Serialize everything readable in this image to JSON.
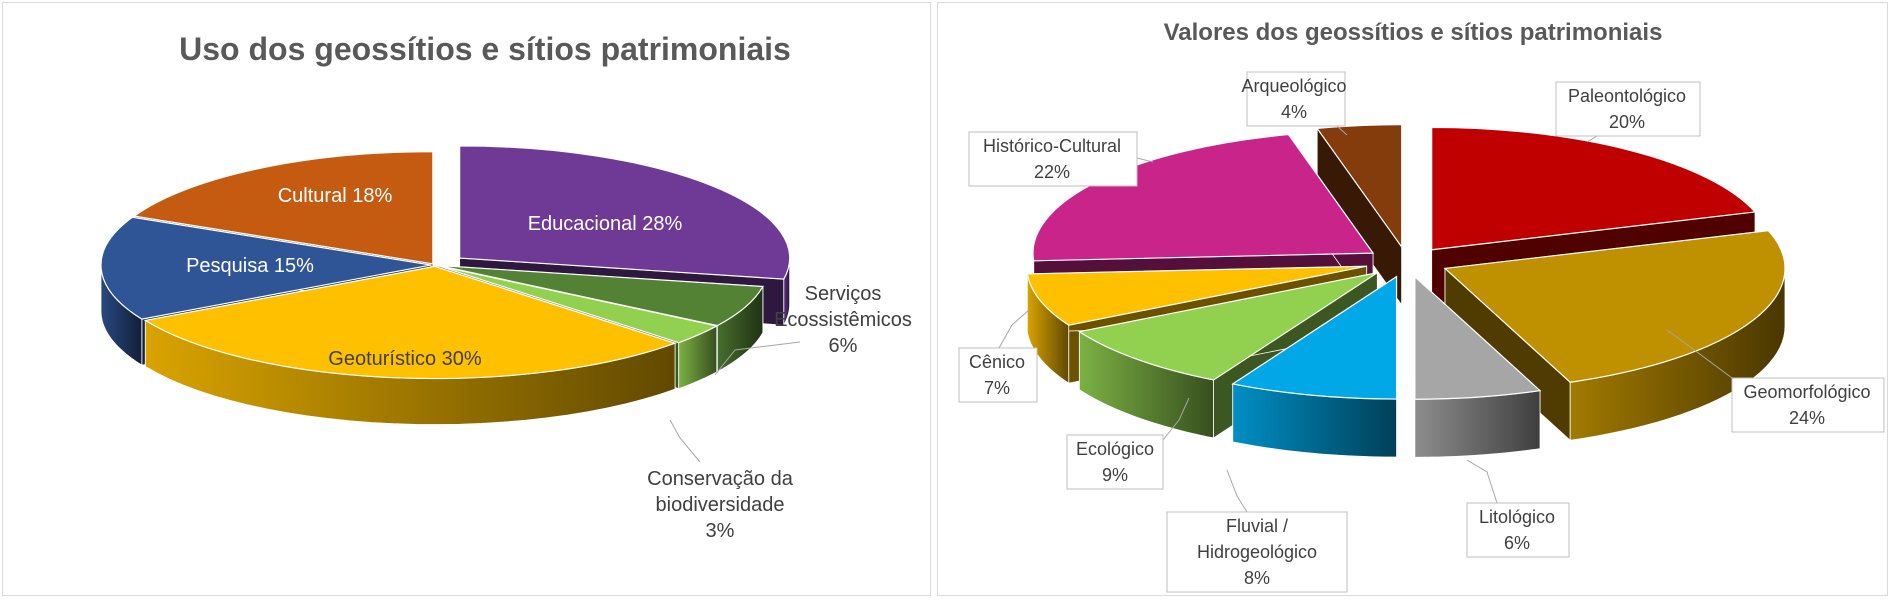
{
  "chart_data": [
    {
      "type": "pie",
      "title": "Uso dos geossítios e sítios patrimoniais",
      "slices": [
        {
          "category": "Educacional",
          "value": 28,
          "label_lines": [
            "Educacional 28%"
          ],
          "color": "#6F3A95",
          "exploded": true
        },
        {
          "category": "Serviços Ecossistêmicos",
          "value": 6,
          "label_lines": [
            "Serviços",
            "Ecossistêmicos",
            "6%"
          ],
          "color": "#548235",
          "exploded": false
        },
        {
          "category": "Conservação da biodiversidade",
          "value": 3,
          "label_lines": [
            "Conservação da",
            "biodiversidade",
            "3%"
          ],
          "color": "#92D050",
          "exploded": false
        },
        {
          "category": "Geoturístico",
          "value": 30,
          "label_lines": [
            "Geoturístico 30%"
          ],
          "color": "#FFC000",
          "exploded": false
        },
        {
          "category": "Pesquisa",
          "value": 15,
          "label_lines": [
            "Pesquisa 15%"
          ],
          "color": "#2F5597",
          "exploded": false
        },
        {
          "category": "Cultural",
          "value": 18,
          "label_lines": [
            "Cultural 18%"
          ],
          "color": "#C55A11",
          "exploded": false
        }
      ]
    },
    {
      "type": "pie",
      "title": "Valores dos geossítios e sítios patrimoniais",
      "slices": [
        {
          "category": "Paleontológico",
          "value": 20,
          "label_lines": [
            "Paleontológico",
            "20%"
          ],
          "color": "#C00000"
        },
        {
          "category": "Geomorfológico",
          "value": 24,
          "label_lines": [
            "Geomorfológico",
            "24%"
          ],
          "color": "#BF9000"
        },
        {
          "category": "Litológico",
          "value": 6,
          "label_lines": [
            "Litológico",
            "6%"
          ],
          "color": "#A6A6A6"
        },
        {
          "category": "Fluvial / Hidrogeológico",
          "value": 8,
          "label_lines": [
            "Fluvial /",
            "Hidrogeológico",
            "8%"
          ],
          "color": "#00A8E8"
        },
        {
          "category": "Ecológico",
          "value": 9,
          "label_lines": [
            "Ecológico",
            "9%"
          ],
          "color": "#92D050"
        },
        {
          "category": "Cênico",
          "value": 7,
          "label_lines": [
            "Cênico",
            "7%"
          ],
          "color": "#FFC000"
        },
        {
          "category": "Histórico-Cultural",
          "value": 22,
          "label_lines": [
            "Histórico-Cultural",
            "22%"
          ],
          "color": "#C8248A"
        },
        {
          "category": "Arqueológico",
          "value": 4,
          "label_lines": [
            "Arqueológico",
            "4%"
          ],
          "color": "#843C0C"
        }
      ]
    }
  ]
}
